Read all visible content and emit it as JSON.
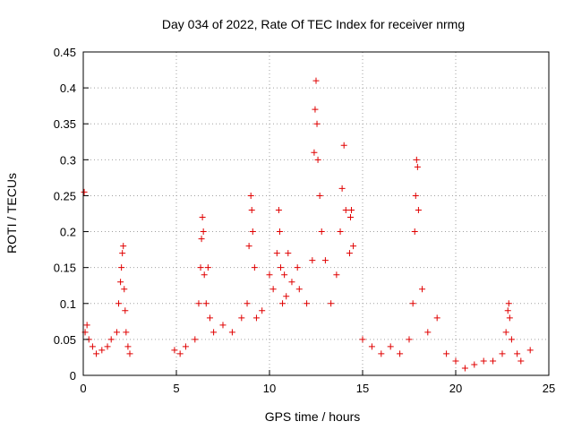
{
  "chart_data": {
    "type": "scatter",
    "title": "Day 034 of 2022, Rate Of TEC Index for receiver nrmg",
    "xlabel": "GPS time / hours",
    "ylabel": "ROTI / TECUs",
    "xlim": [
      0,
      25
    ],
    "ylim": [
      0,
      0.45
    ],
    "xticks": [
      "0",
      "5",
      "10",
      "15",
      "20",
      "25"
    ],
    "yticks": [
      "0",
      "0.05",
      "0.1",
      "0.15",
      "0.2",
      "0.25",
      "0.3",
      "0.35",
      "0.4",
      "0.45"
    ],
    "grid": true,
    "marker": "+",
    "color": "#e00000",
    "series": [
      {
        "x": [
          0.05,
          0.1,
          0.2,
          0.3,
          0.5,
          0.7,
          1.0,
          1.3,
          1.5,
          1.8,
          1.9,
          2.0,
          2.05,
          2.1,
          2.15,
          2.2,
          2.25,
          2.3,
          2.4,
          2.5,
          4.9,
          5.2,
          5.5,
          6.0,
          6.2,
          6.3,
          6.35,
          6.4,
          6.45,
          6.5,
          6.6,
          6.7,
          6.8,
          7.0,
          7.5,
          8.0,
          8.5,
          8.8,
          8.9,
          9.0,
          9.05,
          9.1,
          9.2,
          9.3,
          9.6,
          10.0,
          10.2,
          10.4,
          10.5,
          10.55,
          10.6,
          10.7,
          10.8,
          10.9,
          11.0,
          11.2,
          11.5,
          11.6,
          12.0,
          12.3,
          12.4,
          12.45,
          12.5,
          12.55,
          12.6,
          12.7,
          12.8,
          13.0,
          13.3,
          13.6,
          13.8,
          13.9,
          14.0,
          14.1,
          14.3,
          14.35,
          14.4,
          14.5,
          15.0,
          15.5,
          16.0,
          16.5,
          17.0,
          17.5,
          17.7,
          17.8,
          17.85,
          17.9,
          17.95,
          18.0,
          18.2,
          18.5,
          19.0,
          19.5,
          20.0,
          20.5,
          21.0,
          21.5,
          22.0,
          22.5,
          22.7,
          22.8,
          22.85,
          22.9,
          23.0,
          23.3,
          23.5,
          24.0
        ],
        "y": [
          0.255,
          0.06,
          0.07,
          0.05,
          0.04,
          0.03,
          0.035,
          0.04,
          0.05,
          0.06,
          0.1,
          0.13,
          0.15,
          0.17,
          0.18,
          0.12,
          0.09,
          0.06,
          0.04,
          0.03,
          0.035,
          0.03,
          0.04,
          0.05,
          0.1,
          0.15,
          0.19,
          0.22,
          0.2,
          0.14,
          0.1,
          0.15,
          0.08,
          0.06,
          0.07,
          0.06,
          0.08,
          0.1,
          0.18,
          0.25,
          0.23,
          0.2,
          0.15,
          0.08,
          0.09,
          0.14,
          0.12,
          0.17,
          0.23,
          0.2,
          0.15,
          0.1,
          0.14,
          0.11,
          0.17,
          0.13,
          0.15,
          0.12,
          0.1,
          0.16,
          0.31,
          0.37,
          0.41,
          0.35,
          0.3,
          0.25,
          0.2,
          0.16,
          0.1,
          0.14,
          0.2,
          0.26,
          0.32,
          0.23,
          0.17,
          0.22,
          0.23,
          0.18,
          0.05,
          0.04,
          0.03,
          0.04,
          0.03,
          0.05,
          0.1,
          0.2,
          0.25,
          0.3,
          0.29,
          0.23,
          0.12,
          0.06,
          0.08,
          0.03,
          0.02,
          0.01,
          0.015,
          0.02,
          0.02,
          0.03,
          0.06,
          0.09,
          0.1,
          0.08,
          0.05,
          0.03,
          0.02,
          0.035
        ]
      }
    ]
  }
}
